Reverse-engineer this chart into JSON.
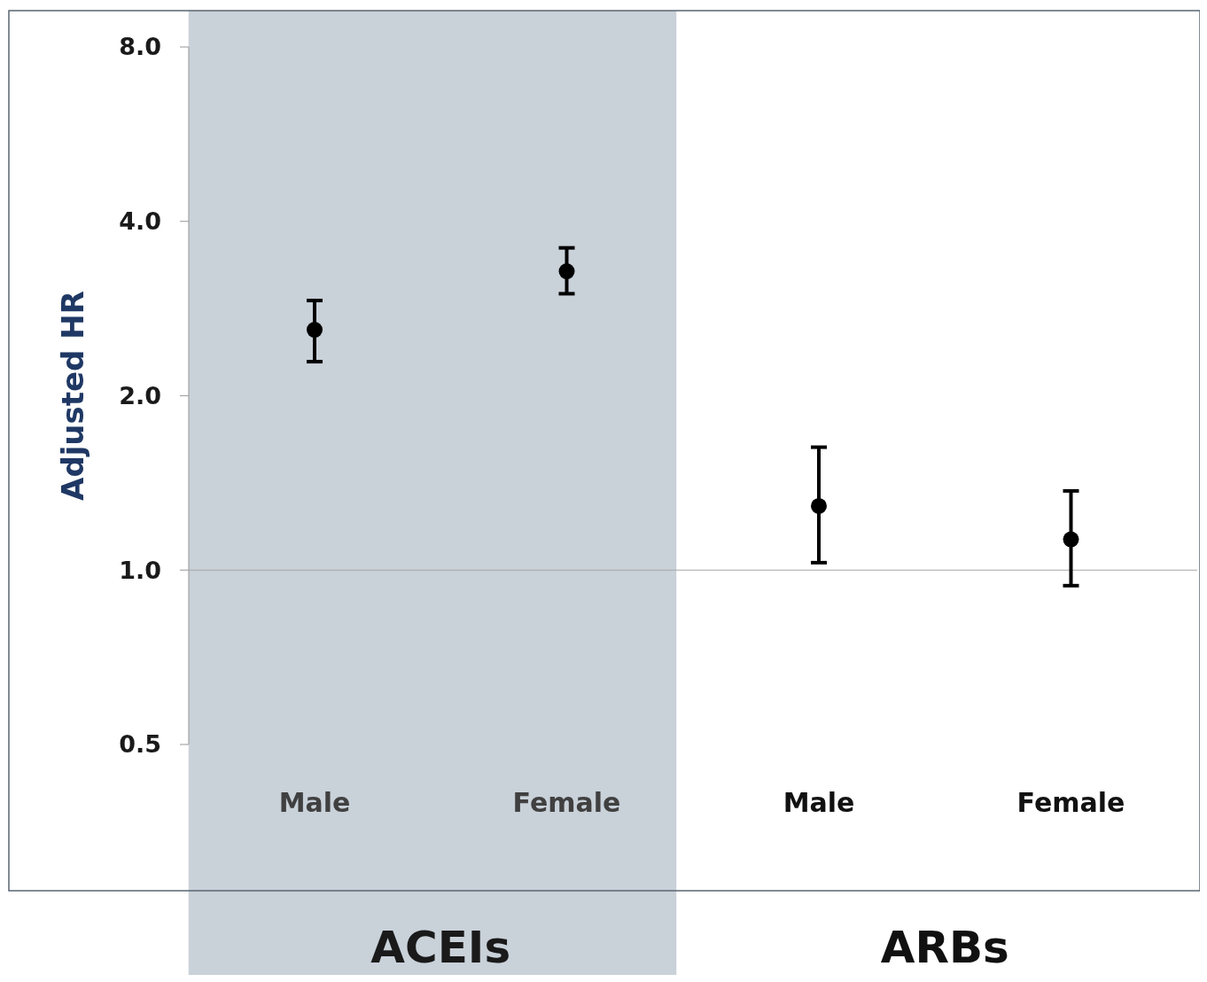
{
  "chart_data": {
    "type": "scatter",
    "ylabel": "Adjusted HR",
    "categories": [
      "Male",
      "Female",
      "Male",
      "Female"
    ],
    "series": [
      {
        "color": "#000000",
        "values": [
          2.6,
          3.28,
          1.29,
          1.13
        ],
        "errors": [
          [
            2.29,
            2.92
          ],
          [
            3.0,
            3.6
          ],
          [
            1.03,
            1.63
          ],
          [
            0.94,
            1.37
          ]
        ]
      }
    ],
    "log": "y",
    "ylim": [
      0.5,
      8
    ],
    "yticks": [
      {
        "value": 0.5,
        "label": "0.5"
      },
      {
        "value": 1,
        "label": "1.0"
      },
      {
        "value": 2,
        "label": "2.0"
      },
      {
        "value": 4,
        "label": "4.0"
      },
      {
        "value": 8,
        "label": "8.0"
      }
    ],
    "grid": false,
    "marker": "circle",
    "ref_lines": [
      {
        "axis": "y",
        "value": 1,
        "color": "#a6a6a6"
      }
    ],
    "bands": [
      {
        "axis": "x",
        "from": "Male",
        "to": "Female",
        "label": "ACEIs",
        "color": "#c9d1d9"
      }
    ],
    "annotations": [
      "ARBs"
    ]
  }
}
